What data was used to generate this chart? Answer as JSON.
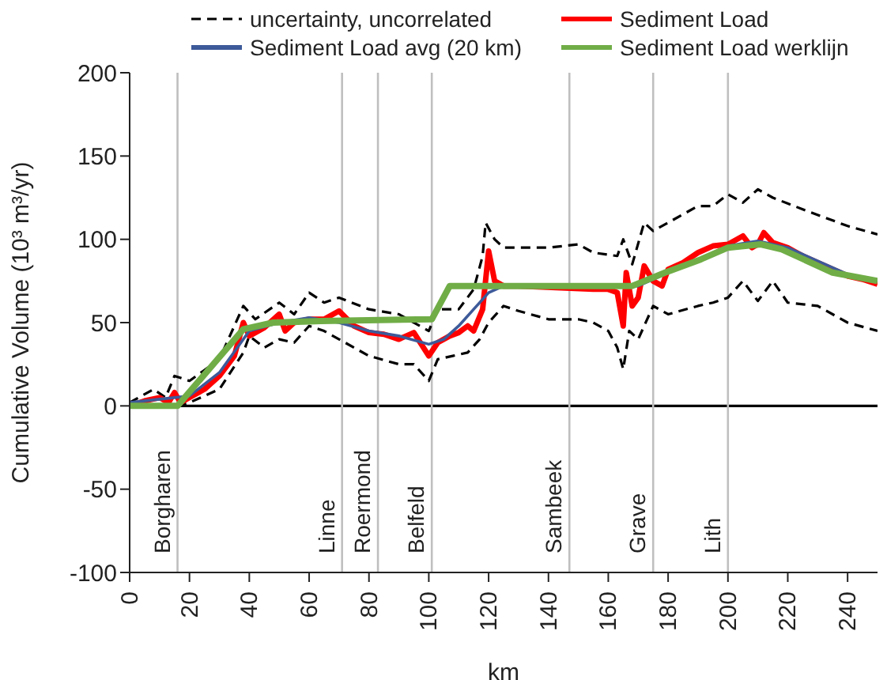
{
  "chart_data": {
    "type": "line",
    "xlabel": "km",
    "ylabel": "Cumulative Volume (10³ m³/yr)",
    "xlim": [
      0,
      250
    ],
    "xticks": [
      0,
      20,
      40,
      60,
      80,
      100,
      120,
      140,
      160,
      180,
      200,
      220,
      240
    ],
    "ylim": [
      -100,
      200
    ],
    "yticks": [
      -100,
      -50,
      0,
      50,
      100,
      150,
      200
    ],
    "grid": false,
    "legend": "top",
    "marker": "none",
    "series": [
      {
        "name": "uncertainty, uncorrelated",
        "color": "#000000",
        "line_style": "dashed",
        "x": [
          0,
          8,
          12,
          15,
          20,
          30,
          38,
          42,
          50,
          55,
          60,
          65,
          70,
          80,
          90,
          100,
          103,
          110,
          115,
          118,
          119,
          122,
          125,
          140,
          150,
          155,
          163,
          165,
          168,
          172,
          175,
          185,
          190,
          195,
          200,
          205,
          210,
          215,
          225,
          240,
          250
        ],
        "values": [
          2,
          10,
          5,
          18,
          15,
          28,
          60,
          52,
          62,
          55,
          68,
          62,
          65,
          58,
          55,
          45,
          58,
          58,
          70,
          90,
          110,
          100,
          95,
          95,
          97,
          92,
          90,
          100,
          85,
          110,
          105,
          115,
          120,
          120,
          127,
          122,
          130,
          125,
          118,
          108,
          103
        ]
      },
      {
        "color": "#000000",
        "line_style": "dashed",
        "x": [
          0,
          16,
          20,
          30,
          38,
          40,
          45,
          50,
          55,
          60,
          65,
          70,
          80,
          90,
          95,
          100,
          103,
          108,
          113,
          117,
          120,
          125,
          130,
          140,
          150,
          155,
          160,
          163,
          165,
          167,
          170,
          175,
          180,
          190,
          195,
          200,
          205,
          210,
          215,
          220,
          230,
          240,
          250
        ],
        "values": [
          0,
          0,
          2,
          10,
          32,
          42,
          35,
          40,
          38,
          48,
          45,
          40,
          30,
          25,
          25,
          15,
          28,
          30,
          32,
          40,
          50,
          60,
          57,
          52,
          52,
          50,
          45,
          35,
          22,
          45,
          40,
          60,
          55,
          60,
          62,
          65,
          75,
          63,
          75,
          62,
          60,
          50,
          45
        ]
      },
      {
        "name": "Sediment Load",
        "color": "#ff0000",
        "line_style": "solid",
        "x": [
          0,
          5,
          10,
          13,
          15,
          17,
          20,
          25,
          30,
          35,
          38,
          40,
          45,
          50,
          52,
          55,
          60,
          65,
          70,
          75,
          80,
          85,
          90,
          95,
          100,
          103,
          107,
          110,
          113,
          115,
          118,
          120,
          122,
          125,
          130,
          155,
          160,
          163,
          165,
          166,
          168,
          170,
          172,
          175,
          178,
          180,
          185,
          190,
          195,
          200,
          205,
          208,
          210,
          212,
          215,
          220,
          225,
          230,
          240,
          245,
          250
        ],
        "values": [
          0,
          3,
          5,
          2,
          8,
          2,
          5,
          10,
          18,
          30,
          50,
          42,
          47,
          55,
          45,
          50,
          52,
          52,
          57,
          48,
          44,
          43,
          40,
          44,
          30,
          38,
          42,
          44,
          48,
          45,
          58,
          93,
          75,
          72,
          72,
          70,
          70,
          68,
          48,
          80,
          60,
          65,
          84,
          75,
          72,
          82,
          86,
          92,
          96,
          97,
          102,
          95,
          97,
          104,
          98,
          95,
          90,
          86,
          78,
          76,
          73
        ]
      },
      {
        "name": "Sediment Load avg (20 km)",
        "color": "#3d5a99",
        "line_style": "solid",
        "x": [
          0,
          10,
          20,
          30,
          40,
          50,
          60,
          70,
          80,
          90,
          100,
          105,
          110,
          115,
          120,
          125,
          140,
          160,
          170,
          180,
          200,
          210,
          220,
          240,
          250
        ],
        "values": [
          2,
          4,
          6,
          20,
          45,
          50,
          53,
          50,
          45,
          42,
          37,
          40,
          48,
          58,
          68,
          72,
          72,
          71,
          72,
          80,
          96,
          99,
          95,
          79,
          75
        ]
      },
      {
        "name": "Sediment Load werklijn",
        "color": "#70ad47",
        "line_style": "solid",
        "x": [
          0,
          16,
          38,
          48,
          64,
          101,
          107,
          168,
          179,
          191,
          200,
          211,
          218,
          235,
          250
        ],
        "values": [
          0,
          0,
          46,
          50,
          51,
          52,
          72,
          72,
          80,
          88,
          95,
          97,
          94,
          80,
          75
        ]
      }
    ],
    "ref_lines": [
      {
        "axis": "y",
        "value": 0,
        "color": "#000000"
      },
      {
        "axis": "x",
        "value": 16,
        "label": "Borgharen",
        "color": "#bfbfbf"
      },
      {
        "axis": "x",
        "value": 71,
        "label": "Linne",
        "color": "#bfbfbf"
      },
      {
        "axis": "x",
        "value": 83,
        "label": "Roermond",
        "color": "#bfbfbf"
      },
      {
        "axis": "x",
        "value": 101,
        "label": "Belfeld",
        "color": "#bfbfbf"
      },
      {
        "axis": "x",
        "value": 147,
        "label": "Sambeek",
        "color": "#bfbfbf"
      },
      {
        "axis": "x",
        "value": 175,
        "label": "Grave",
        "color": "#bfbfbf"
      },
      {
        "axis": "x",
        "value": 200,
        "label": "Lith",
        "color": "#bfbfbf"
      }
    ]
  }
}
